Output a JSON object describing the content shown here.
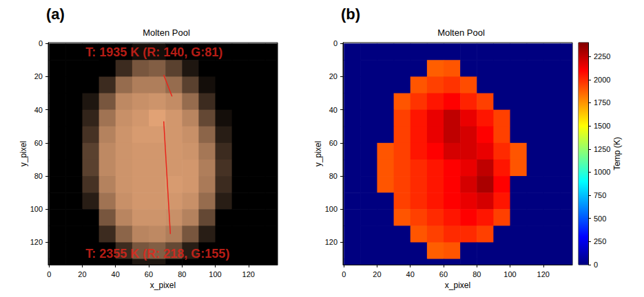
{
  "chart_data": [
    {
      "type": "image",
      "label": "(a)",
      "title": "Molten Pool",
      "xlabel": "x_pixel",
      "ylabel": "y_pixel",
      "xlim": [
        -0.5,
        137.5
      ],
      "ylim": [
        133.5,
        -0.5
      ],
      "xticks": [
        0,
        20,
        40,
        60,
        80,
        100,
        120
      ],
      "yticks": [
        0,
        20,
        40,
        60,
        80,
        100,
        120
      ],
      "x_edges": [
        0,
        10,
        20,
        30,
        40,
        50,
        60,
        70,
        80,
        90,
        100,
        110,
        120,
        130,
        140
      ],
      "y_edges": [
        0,
        10,
        20,
        30,
        40,
        50,
        60,
        70,
        80,
        90,
        100,
        110,
        120,
        130,
        140
      ],
      "cells": [
        [
          0,
          0,
          0,
          0,
          0,
          20,
          20,
          0,
          0,
          0,
          0,
          0,
          0,
          0
        ],
        [
          0,
          0,
          0,
          0,
          60,
          120,
          130,
          90,
          30,
          0,
          0,
          0,
          0,
          0
        ],
        [
          0,
          0,
          0,
          60,
          150,
          175,
          175,
          150,
          90,
          20,
          0,
          0,
          0,
          0
        ],
        [
          0,
          0,
          30,
          120,
          190,
          200,
          205,
          195,
          150,
          60,
          0,
          0,
          0,
          0
        ],
        [
          0,
          0,
          50,
          160,
          200,
          210,
          225,
          210,
          185,
          100,
          20,
          0,
          0,
          0
        ],
        [
          0,
          0,
          70,
          180,
          205,
          215,
          215,
          210,
          200,
          140,
          40,
          0,
          0,
          0
        ],
        [
          0,
          0,
          90,
          190,
          205,
          210,
          210,
          210,
          205,
          165,
          60,
          0,
          0,
          0
        ],
        [
          0,
          0,
          90,
          190,
          205,
          210,
          210,
          210,
          210,
          175,
          70,
          0,
          0,
          0
        ],
        [
          0,
          0,
          70,
          180,
          205,
          210,
          210,
          215,
          210,
          170,
          60,
          0,
          0,
          0
        ],
        [
          0,
          0,
          40,
          160,
          200,
          210,
          210,
          210,
          200,
          150,
          40,
          0,
          0,
          0
        ],
        [
          0,
          0,
          0,
          120,
          185,
          205,
          205,
          200,
          180,
          100,
          0,
          0,
          0,
          0
        ],
        [
          0,
          0,
          0,
          60,
          140,
          185,
          190,
          175,
          120,
          40,
          0,
          0,
          0,
          0
        ],
        [
          0,
          0,
          0,
          0,
          60,
          120,
          130,
          100,
          40,
          0,
          0,
          0,
          0,
          0
        ],
        [
          0,
          0,
          0,
          0,
          0,
          30,
          30,
          0,
          0,
          0,
          0,
          0,
          0,
          0
        ]
      ],
      "annotations": [
        {
          "text": "T: 1935 K (R: 140, G:81)",
          "text_xy": [
            22,
            5.4
          ],
          "arrow_from": [
            74,
            32
          ],
          "arrow_to": [
            69,
            19
          ]
        },
        {
          "text": "T: 2355 K (R: 218, G:155)",
          "text_xy": [
            22,
            127
          ],
          "arrow_from": [
            69,
            47
          ],
          "arrow_to": [
            73,
            115
          ]
        }
      ]
    },
    {
      "type": "heatmap",
      "label": "(b)",
      "title": "Molten Pool",
      "xlabel": "x_pixel",
      "ylabel": "y_pixel",
      "xlim": [
        -0.5,
        137.5
      ],
      "ylim": [
        133.5,
        -0.5
      ],
      "xticks": [
        0,
        20,
        40,
        60,
        80,
        100,
        120
      ],
      "yticks": [
        0,
        20,
        40,
        60,
        80,
        100,
        120
      ],
      "x_edges": [
        0,
        10,
        20,
        30,
        40,
        50,
        60,
        70,
        80,
        90,
        100,
        110,
        120,
        130,
        140
      ],
      "y_edges": [
        0,
        10,
        20,
        30,
        40,
        50,
        60,
        70,
        80,
        90,
        100,
        110,
        120,
        130,
        140
      ],
      "cells": [
        [
          0,
          0,
          0,
          0,
          0,
          0,
          0,
          0,
          0,
          0,
          0,
          0,
          0,
          0
        ],
        [
          0,
          0,
          0,
          0,
          0,
          1880,
          1900,
          0,
          0,
          0,
          0,
          0,
          0,
          0
        ],
        [
          0,
          0,
          0,
          0,
          1900,
          1950,
          1980,
          1920,
          0,
          0,
          0,
          0,
          0,
          0
        ],
        [
          0,
          0,
          0,
          1900,
          1980,
          2050,
          2100,
          2020,
          1950,
          0,
          0,
          0,
          0,
          0
        ],
        [
          0,
          0,
          0,
          1950,
          2050,
          2150,
          2250,
          2150,
          2050,
          1950,
          0,
          0,
          0,
          0
        ],
        [
          0,
          0,
          0,
          1950,
          2050,
          2150,
          2250,
          2200,
          2100,
          1950,
          0,
          0,
          0,
          0
        ],
        [
          0,
          0,
          1900,
          1950,
          2050,
          2100,
          2200,
          2200,
          2150,
          2000,
          1900,
          0,
          0,
          0
        ],
        [
          0,
          0,
          1900,
          1950,
          2000,
          2050,
          2100,
          2150,
          2250,
          2050,
          1900,
          0,
          0,
          0
        ],
        [
          0,
          0,
          1900,
          1950,
          2000,
          2050,
          2100,
          2200,
          2300,
          2100,
          0,
          0,
          0,
          0
        ],
        [
          0,
          0,
          0,
          1950,
          2000,
          2050,
          2100,
          2150,
          2200,
          2050,
          0,
          0,
          0,
          0
        ],
        [
          0,
          0,
          0,
          1900,
          1950,
          2000,
          2050,
          2100,
          2050,
          1950,
          0,
          0,
          0,
          0
        ],
        [
          0,
          0,
          0,
          0,
          1900,
          1950,
          2000,
          2000,
          1950,
          0,
          0,
          0,
          0,
          0
        ],
        [
          0,
          0,
          0,
          0,
          0,
          1880,
          1900,
          0,
          0,
          0,
          0,
          0,
          0,
          0
        ],
        [
          0,
          0,
          0,
          0,
          0,
          0,
          0,
          0,
          0,
          0,
          0,
          0,
          0,
          0
        ]
      ],
      "colorbar": {
        "label": "Temp (K)",
        "range": [
          0,
          2400
        ],
        "ticks": [
          0,
          250,
          500,
          750,
          1000,
          1250,
          1500,
          1750,
          2000,
          2250
        ]
      }
    }
  ]
}
